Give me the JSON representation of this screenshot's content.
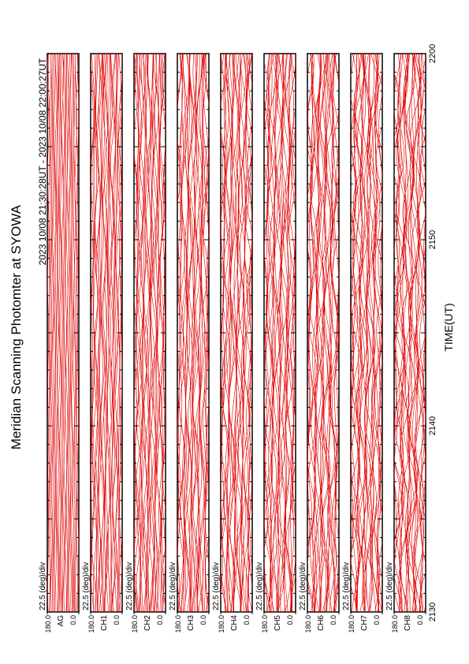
{
  "chart_data": {
    "type": "line",
    "title": "Meridian Scanning Photomter at SYOWA",
    "subtitle": "2023 10/08 21:30:28UT - 2023 10/08 22:00:27UT",
    "x_label": "TIME(UT)",
    "xticks": [
      "2130",
      "2140",
      "2150",
      "2200"
    ],
    "ylim": [
      0,
      180
    ],
    "yticks": [
      {
        "value": 0,
        "label": "0.0"
      },
      {
        "value": 180,
        "label": "180.0"
      }
    ],
    "color": "#e00000",
    "panels": [
      {
        "name": "AG",
        "scale": "22.5 (deg)/div"
      },
      {
        "name": "CH1",
        "scale": "22.5 (deg)/div"
      },
      {
        "name": "CH2",
        "scale": "22.5 (deg)/div"
      },
      {
        "name": "CH3",
        "scale": "22.5 (deg)/div"
      },
      {
        "name": "CH4",
        "scale": "22.5 (deg)/div"
      },
      {
        "name": "CH5",
        "scale": "22.5 (deg)/div"
      },
      {
        "name": "CH6",
        "scale": "22.5 (deg)/div"
      },
      {
        "name": "CH7",
        "scale": "22.5 (deg)/div"
      },
      {
        "name": "CH8",
        "scale": "22.5 (deg)/div"
      }
    ]
  }
}
